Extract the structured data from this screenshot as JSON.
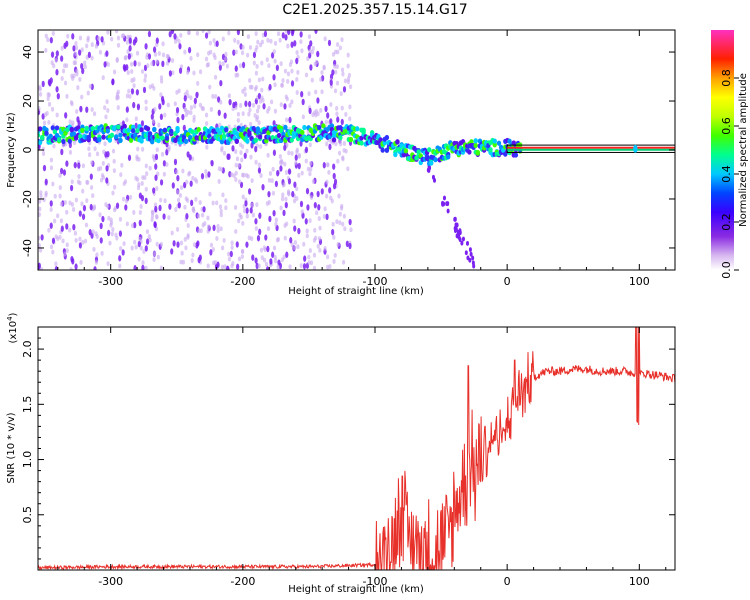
{
  "title": "C2E1.2025.357.15.14.G17",
  "colors": {
    "snr_line": "#e8302a",
    "reference_band": "#000000",
    "scatter_low": "#c8a8f0",
    "scatter_mid": "#7a20f0"
  },
  "chart_data": [
    {
      "type": "heatmap",
      "xlabel": "Height of straight line (km)",
      "ylabel": "Frequency (Hz)",
      "xlim": [
        -355,
        127
      ],
      "ylim": [
        -49,
        49
      ],
      "x_ticks": [
        -300,
        -200,
        -100,
        0,
        100
      ],
      "x_tick_labels": [
        "-300",
        "-200",
        "-100",
        "0",
        "100"
      ],
      "y_ticks": [
        -40,
        -20,
        0,
        20,
        40
      ],
      "y_tick_labels": [
        "-40",
        "-20",
        "0",
        "20",
        "40"
      ],
      "colorbar": {
        "label": "Normalized spectral amplitude",
        "range": [
          0,
          1
        ],
        "ticks": [
          0.0,
          0.2,
          0.4,
          0.6,
          0.8
        ],
        "tick_labels": [
          "0.0",
          "0.2",
          "0.4",
          "0.6",
          "0.8"
        ]
      },
      "ridge": {
        "x": [
          -355,
          -300,
          -250,
          -200,
          -150,
          -120,
          -100,
          -80,
          -60,
          -40,
          -20,
          0,
          10,
          127
        ],
        "y": [
          6,
          7,
          6,
          6,
          7,
          7,
          4,
          0,
          -3,
          1,
          1,
          1,
          0.5,
          0.5
        ]
      },
      "reference_band": {
        "x_start": 0,
        "x_end": 127,
        "y": [
          -1,
          2
        ]
      },
      "grid": false
    },
    {
      "type": "line",
      "xlabel": "Height of straight line (km)",
      "ylabel": "SNR (10 * v/v)",
      "y_multiplier": "(x10",
      "y_multiplier_exp": "4",
      "y_multiplier_close": ")",
      "xlim": [
        -355,
        127
      ],
      "ylim": [
        0,
        2.2
      ],
      "x_ticks": [
        -300,
        -200,
        -100,
        0,
        100
      ],
      "x_tick_labels": [
        "-300",
        "-200",
        "-100",
        "0",
        "100"
      ],
      "y_ticks": [
        0.5,
        1.0,
        1.5,
        2.0
      ],
      "y_tick_labels": [
        "0.5",
        "1.0",
        "1.5",
        "2.0"
      ],
      "series": [
        {
          "x": [
            -355,
            -300,
            -250,
            -200,
            -150,
            -120,
            -100,
            -90,
            -85,
            -80,
            -75,
            -70,
            -65,
            -60,
            -50,
            -45,
            -40,
            -35,
            -30,
            -25,
            -20,
            -15,
            -10,
            -5,
            0,
            5,
            10,
            20,
            30,
            40,
            50,
            60,
            70,
            80,
            90,
            95,
            98,
            100,
            102,
            105,
            110,
            120,
            127
          ],
          "y": [
            0.02,
            0.03,
            0.03,
            0.03,
            0.03,
            0.04,
            0.05,
            0.15,
            0.35,
            0.45,
            0.3,
            0.25,
            0.2,
            0.15,
            0.15,
            0.3,
            0.5,
            0.7,
            0.85,
            0.9,
            1.0,
            1.1,
            1.2,
            1.2,
            1.3,
            1.5,
            1.6,
            1.75,
            1.8,
            1.8,
            1.82,
            1.82,
            1.8,
            1.8,
            1.8,
            1.78,
            1.8,
            1.75,
            1.78,
            1.78,
            1.77,
            1.75,
            1.73
          ]
        }
      ],
      "grid": false
    }
  ]
}
